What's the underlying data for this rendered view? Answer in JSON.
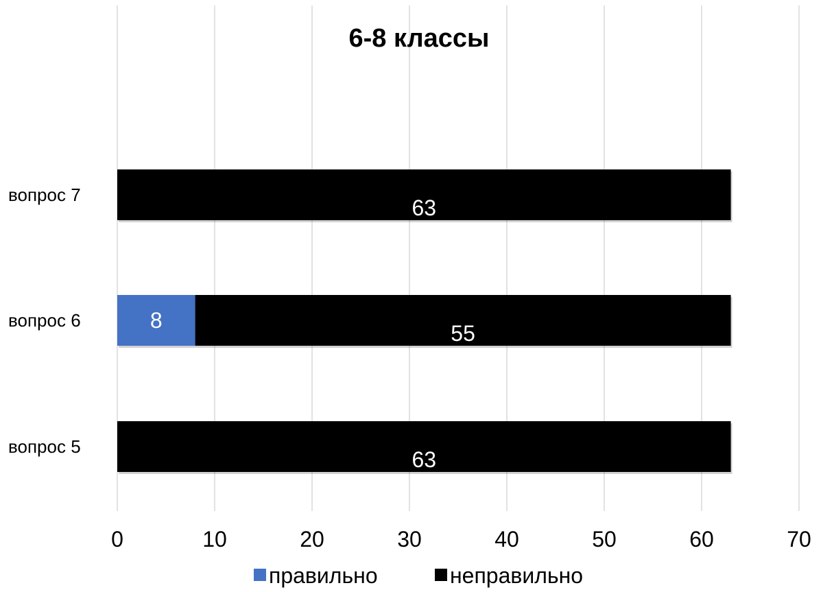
{
  "chart_data": {
    "type": "bar",
    "orientation": "horizontal",
    "stacked": true,
    "title": "6-8 классы",
    "categories": [
      "вопрос 5",
      "вопрос 6",
      "вопрос 7"
    ],
    "series": [
      {
        "name": "правильно",
        "values": [
          0,
          8,
          0
        ],
        "color": "#4472C4"
      },
      {
        "name": "неправильно",
        "values": [
          63,
          55,
          63
        ],
        "color": "#000000"
      }
    ],
    "xlim": [
      0,
      70
    ],
    "xticks": [
      0,
      10,
      20,
      30,
      40,
      50,
      60,
      70
    ],
    "grid": true,
    "legend": "bottom",
    "xlabel": "",
    "ylabel": ""
  }
}
